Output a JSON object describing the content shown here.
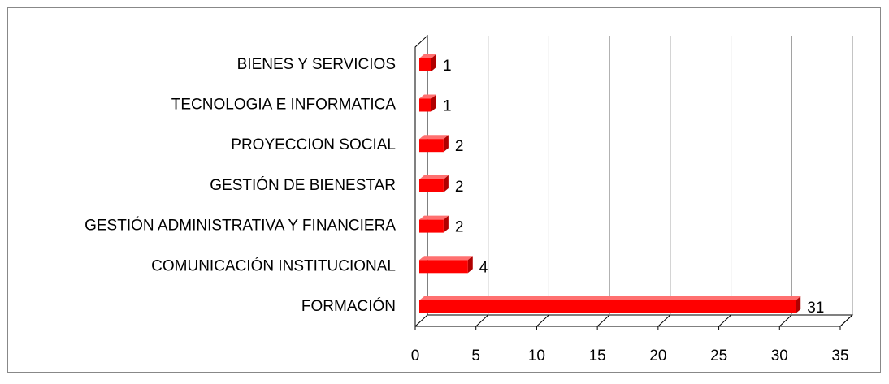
{
  "chart_data": {
    "type": "bar",
    "orientation": "horizontal",
    "categories": [
      "FORMACIÓN",
      "COMUNICACIÓN INSTITUCIONAL",
      "GESTIÓN ADMINISTRATIVA Y FINANCIERA",
      "GESTIÓN DE BIENESTAR",
      "PROYECCION SOCIAL",
      "TECNOLOGIA  E INFORMATICA",
      "BIENES Y SERVICIOS"
    ],
    "values": [
      31,
      4,
      2,
      2,
      2,
      1,
      1
    ],
    "color": "#ff0000",
    "xlim": [
      0,
      35
    ],
    "xticks": [
      0,
      5,
      10,
      15,
      20,
      25,
      30,
      35
    ],
    "grid": true
  }
}
